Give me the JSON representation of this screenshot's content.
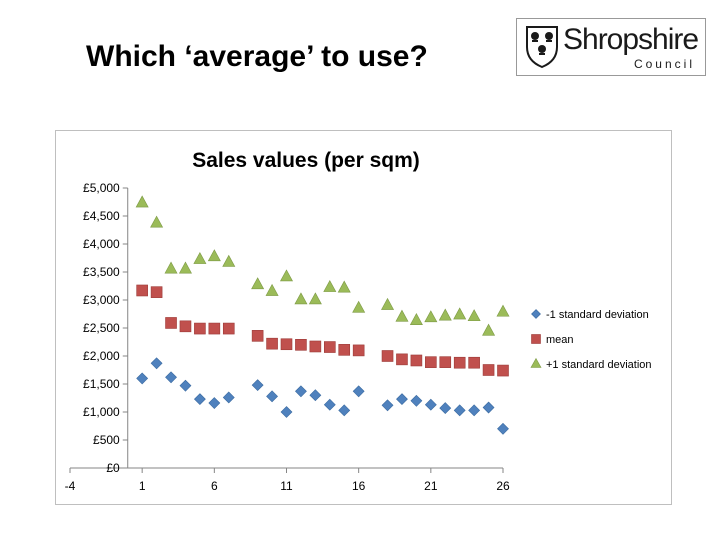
{
  "slide": {
    "title": "Which ‘average’ to use?"
  },
  "logo": {
    "name": "Shropshire",
    "subtitle": "Council",
    "icon": "crest-icon"
  },
  "chart_data": {
    "type": "scatter",
    "title": "Sales values (per sqm)",
    "xlabel": "",
    "ylabel": "",
    "xlim": [
      -4,
      26
    ],
    "ylim": [
      0,
      5000
    ],
    "x_ticks": [
      -4,
      1,
      6,
      11,
      16,
      21,
      26
    ],
    "x_tick_labels": [
      "-4",
      "1",
      "6",
      "11",
      "16",
      "21",
      "26"
    ],
    "y_ticks": [
      0,
      500,
      1000,
      1500,
      2000,
      2500,
      3000,
      3500,
      4000,
      4500,
      5000
    ],
    "y_tick_labels": [
      "£0",
      "£500",
      "£1,000",
      "£1,500",
      "£2,000",
      "£2,500",
      "£3,000",
      "£3,500",
      "£4,000",
      "£4,500",
      "£5,000"
    ],
    "grid": false,
    "legend_position": "right",
    "series": [
      {
        "name": "-1 standard deviation",
        "marker": "diamond",
        "color": "#4f81bd",
        "x": [
          1,
          2,
          3,
          4,
          5,
          6,
          7,
          9,
          10,
          11,
          12,
          13,
          14,
          15,
          16,
          18,
          19,
          20,
          21,
          22,
          23,
          24,
          25,
          26
        ],
        "y": [
          1600,
          1870,
          1620,
          1470,
          1230,
          1160,
          1260,
          1480,
          1280,
          1000,
          1370,
          1300,
          1130,
          1030,
          1370,
          1120,
          1230,
          1200,
          1130,
          1070,
          1030,
          1030,
          1080,
          700
        ]
      },
      {
        "name": "mean",
        "marker": "square",
        "color": "#c0504d",
        "x": [
          1,
          2,
          3,
          4,
          5,
          6,
          7,
          9,
          10,
          11,
          12,
          13,
          14,
          15,
          16,
          18,
          19,
          20,
          21,
          22,
          23,
          24,
          25,
          26
        ],
        "y": [
          3170,
          3140,
          2590,
          2530,
          2490,
          2490,
          2490,
          2360,
          2220,
          2210,
          2200,
          2170,
          2160,
          2110,
          2100,
          2000,
          1940,
          1920,
          1890,
          1890,
          1880,
          1880,
          1750,
          1740
        ]
      },
      {
        "name": "+1 standard deviation",
        "marker": "triangle",
        "color": "#9bbb59",
        "x": [
          1,
          2,
          3,
          4,
          5,
          6,
          7,
          9,
          10,
          11,
          12,
          13,
          14,
          15,
          16,
          18,
          19,
          20,
          21,
          22,
          23,
          24,
          25,
          26
        ],
        "y": [
          4740,
          4380,
          3560,
          3560,
          3730,
          3780,
          3680,
          3280,
          3160,
          3420,
          3010,
          3010,
          3230,
          3220,
          2860,
          2910,
          2700,
          2640,
          2690,
          2720,
          2740,
          2710,
          2450,
          2790
        ]
      }
    ]
  }
}
